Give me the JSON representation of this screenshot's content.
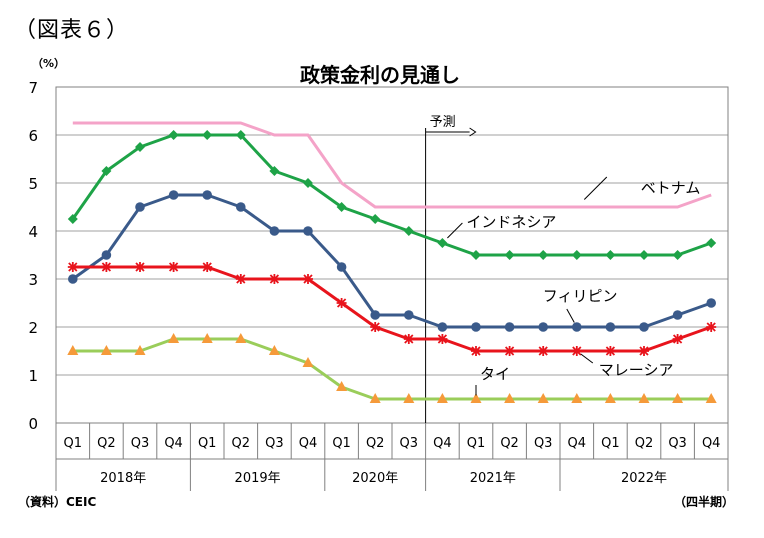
{
  "figure_label": "（図表６）",
  "footer": {
    "source": "（資料）CEIC",
    "unit_note": "（四半期）"
  },
  "chart_data": {
    "type": "line",
    "title": "政策金利の見通し",
    "ylabel": "（%）",
    "ylim": [
      0,
      7
    ],
    "yticks": [
      0,
      1,
      2,
      3,
      4,
      5,
      6,
      7
    ],
    "grid": true,
    "quarters": [
      "Q1",
      "Q2",
      "Q3",
      "Q4",
      "Q1",
      "Q2",
      "Q3",
      "Q4",
      "Q1",
      "Q2",
      "Q3",
      "Q4",
      "Q1",
      "Q2",
      "Q3",
      "Q4",
      "Q1",
      "Q2",
      "Q3",
      "Q4"
    ],
    "years": [
      {
        "label": "2018年",
        "start": 0,
        "end": 3
      },
      {
        "label": "2019年",
        "start": 4,
        "end": 7
      },
      {
        "label": "2020年",
        "start": 8,
        "end": 10
      },
      {
        "label": "2021年",
        "start": 11,
        "end": 14
      },
      {
        "label": "2022年",
        "start": 15,
        "end": 19
      }
    ],
    "forecast": {
      "label": "予測",
      "start_index": 11
    },
    "series": [
      {
        "name": "ベトナム",
        "color": "#f4a3c8",
        "marker": "none",
        "values": [
          6.25,
          6.25,
          6.25,
          6.25,
          6.25,
          6.25,
          6,
          6,
          5,
          4.5,
          4.5,
          4.5,
          4.5,
          4.5,
          4.5,
          4.5,
          4.5,
          4.5,
          4.5,
          4.75
        ]
      },
      {
        "name": "インドネシア",
        "color": "#1ea347",
        "marker": "diamond",
        "values": [
          4.25,
          5.25,
          5.75,
          6,
          6,
          6,
          5.25,
          5,
          4.5,
          4.25,
          4,
          3.75,
          3.5,
          3.5,
          3.5,
          3.5,
          3.5,
          3.5,
          3.5,
          3.75
        ]
      },
      {
        "name": "フィリピン",
        "color": "#3a5a8a",
        "marker": "circle",
        "values": [
          3,
          3.5,
          4.5,
          4.75,
          4.75,
          4.5,
          4,
          4,
          3.25,
          2.25,
          2.25,
          2,
          2,
          2,
          2,
          2,
          2,
          2,
          2.25,
          2.5
        ]
      },
      {
        "name": "マレーシア",
        "color": "#e8141c",
        "marker": "star",
        "values": [
          3.25,
          3.25,
          3.25,
          3.25,
          3.25,
          3,
          3,
          3,
          2.5,
          2,
          1.75,
          1.75,
          1.5,
          1.5,
          1.5,
          1.5,
          1.5,
          1.5,
          1.75,
          2
        ]
      },
      {
        "name": "タイ",
        "color": "#9acd5a",
        "marker": "triangle",
        "values": [
          1.5,
          1.5,
          1.5,
          1.75,
          1.75,
          1.75,
          1.5,
          1.25,
          0.75,
          0.5,
          0.5,
          0.5,
          0.5,
          0.5,
          0.5,
          0.5,
          0.5,
          0.5,
          0.5,
          0.5
        ]
      }
    ]
  }
}
